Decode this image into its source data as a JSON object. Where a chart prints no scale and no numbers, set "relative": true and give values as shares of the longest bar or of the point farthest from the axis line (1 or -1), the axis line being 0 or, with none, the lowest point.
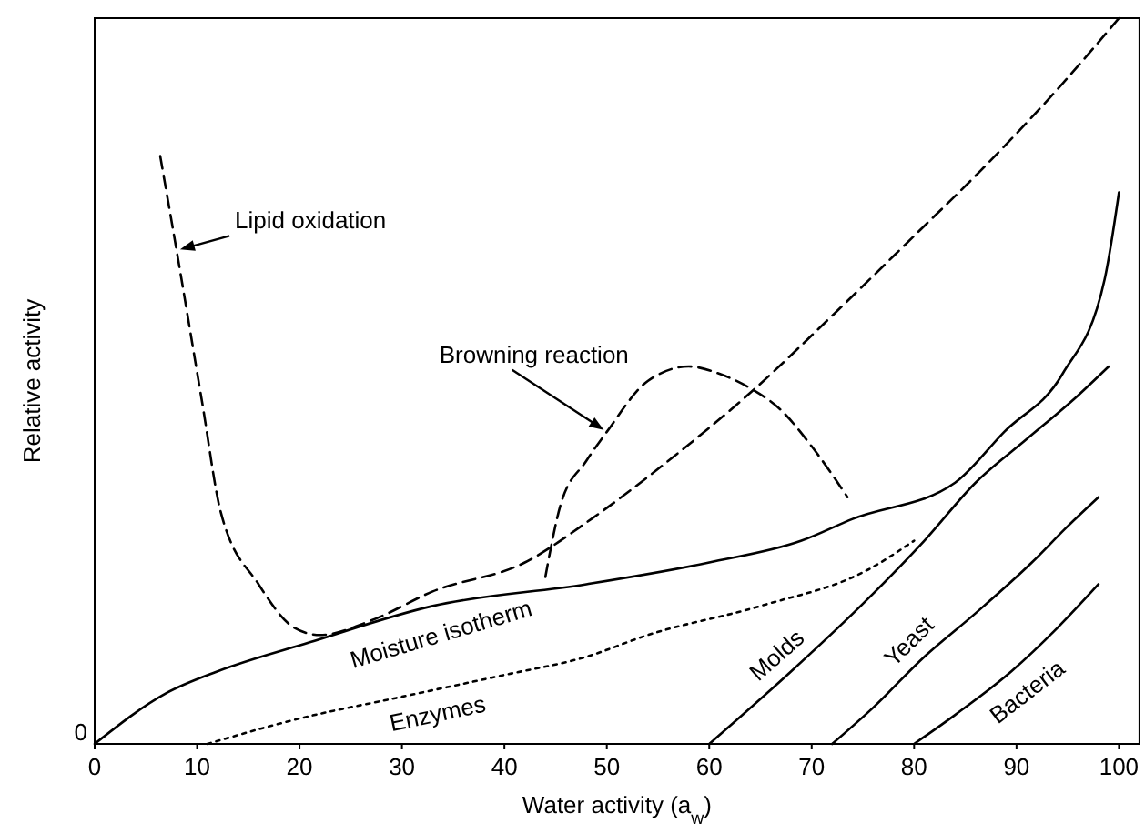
{
  "chart_data": {
    "type": "line",
    "relative": true,
    "xlabel": "Water activity (a$_{w}$)",
    "ylabel": "Relative activity",
    "xlim": [
      0,
      102
    ],
    "xticks": [
      0,
      10,
      20,
      30,
      40,
      50,
      60,
      70,
      80,
      90,
      100
    ],
    "grid": false,
    "legend": false,
    "marker": "none",
    "annotations": [
      {
        "text": "0",
        "x": 0,
        "y": 0
      }
    ],
    "series": [
      {
        "name": "Lipid oxidation",
        "color": "#000000",
        "line_style": "dashed",
        "x": [
          6.4,
          8,
          10.5,
          12.3,
          16,
          19.5,
          22,
          27,
          33,
          42,
          48.5,
          56,
          64.5,
          72,
          80,
          86.5,
          94.5,
          100
        ],
        "values": [
          0.81,
          0.68,
          0.47,
          0.32,
          0.22,
          0.16,
          0.15,
          0.17,
          0.21,
          0.25,
          0.31,
          0.39,
          0.49,
          0.59,
          0.7,
          0.79,
          0.91,
          1.0
        ]
      },
      {
        "name": "Browning reaction",
        "color": "#000000",
        "line_style": "dashed",
        "x": [
          44,
          45.5,
          48,
          50,
          54,
          58,
          61,
          64,
          67,
          70,
          73.5
        ],
        "values": [
          0.23,
          0.33,
          0.39,
          0.43,
          0.5,
          0.52,
          0.51,
          0.49,
          0.46,
          0.41,
          0.34
        ]
      },
      {
        "name": "Moisture isotherm",
        "color": "#000000",
        "line_style": "solid",
        "x": [
          0,
          7,
          12,
          21,
          33,
          48,
          60,
          69,
          74,
          84,
          88.8,
          94.5,
          98.6,
          100
        ],
        "values": [
          0,
          0.07,
          0.1,
          0.14,
          0.19,
          0.22,
          0.25,
          0.28,
          0.31,
          0.36,
          0.43,
          0.51,
          0.64,
          0.76
        ]
      },
      {
        "name": "Enzymes",
        "color": "#000000",
        "line_style": "dotted",
        "x": [
          11,
          20,
          30,
          40,
          48,
          54,
          65,
          75.5,
          80
        ],
        "values": [
          0,
          0.035,
          0.065,
          0.095,
          0.12,
          0.15,
          0.19,
          0.24,
          0.28
        ]
      },
      {
        "name": "Molds",
        "color": "#000000",
        "line_style": "solid",
        "x": [
          60,
          68,
          75.5,
          81,
          86,
          91,
          96,
          99
        ],
        "values": [
          0,
          0.1,
          0.2,
          0.28,
          0.36,
          0.42,
          0.48,
          0.52
        ]
      },
      {
        "name": "Yeast",
        "color": "#000000",
        "line_style": "solid",
        "x": [
          72,
          76,
          81,
          86,
          91.5,
          95,
          98
        ],
        "values": [
          0,
          0.05,
          0.12,
          0.18,
          0.25,
          0.3,
          0.34
        ]
      },
      {
        "name": "Bacteria",
        "color": "#000000",
        "line_style": "solid",
        "x": [
          80,
          84,
          89.5,
          94,
          98
        ],
        "values": [
          0,
          0.04,
          0.1,
          0.16,
          0.22
        ]
      }
    ]
  }
}
